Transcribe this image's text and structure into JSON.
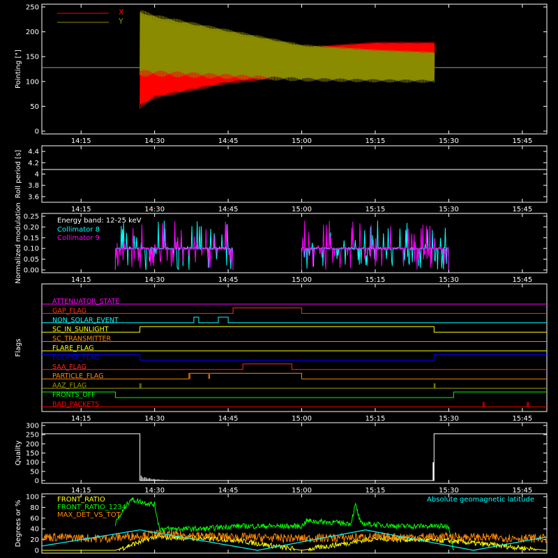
{
  "chart_data": [
    {
      "type": "line",
      "id": "pointing",
      "ylabel": "Pointing [\"]",
      "ylim": [
        0,
        250
      ],
      "yticks": [
        0,
        50,
        100,
        150,
        200,
        250
      ],
      "xlim": [
        "14:07",
        "15:50"
      ],
      "xticks": [
        "14:15",
        "14:30",
        "14:45",
        "15:00",
        "15:15",
        "15:30",
        "15:45"
      ],
      "grid": false,
      "legend_position": "top-left",
      "reference_line": 128,
      "series": [
        {
          "name": "X",
          "color": "#ff0000",
          "x": [
            "14:27",
            "14:30",
            "14:45",
            "15:00",
            "15:15",
            "15:27"
          ],
          "low": [
            45,
            65,
            95,
            110,
            115,
            115
          ],
          "high": [
            130,
            130,
            150,
            170,
            180,
            180
          ]
        },
        {
          "name": "Y",
          "color": "#8b8b00",
          "x": [
            "14:27",
            "14:30",
            "14:45",
            "15:00",
            "15:15",
            "15:27"
          ],
          "low": [
            110,
            110,
            105,
            100,
            98,
            97
          ],
          "high": [
            245,
            235,
            205,
            175,
            165,
            160
          ]
        }
      ]
    },
    {
      "type": "line",
      "id": "roll",
      "ylabel": "Roll period [s]",
      "ylim": [
        3.5,
        4.5
      ],
      "yticks": [
        3.6,
        3.8,
        4.0,
        4.2,
        4.4
      ],
      "xticks": [
        "14:15",
        "14:30",
        "14:45",
        "15:00",
        "15:15",
        "15:30",
        "15:45"
      ],
      "series": [
        {
          "name": "",
          "color": "#ffffff",
          "x": [
            "14:07",
            "15:50"
          ],
          "values": [
            4.08,
            4.08
          ]
        }
      ]
    },
    {
      "type": "line",
      "id": "modulation",
      "ylabel": "Normalized modulation",
      "ylim": [
        0,
        0.25
      ],
      "yticks": [
        "0.00",
        "0.05",
        "0.10",
        "0.15",
        "0.20",
        "0.25"
      ],
      "xticks": [
        "14:15",
        "14:30",
        "14:45",
        "15:00",
        "15:15",
        "15:30",
        "15:45"
      ],
      "annotation": "Energy band: 12-25 keV",
      "legend_position": "top-left",
      "series": [
        {
          "name": "Collimator 8",
          "color": "#00ffff",
          "segments": [
            [
              "14:22",
              "14:46"
            ],
            [
              "15:00",
              "15:30"
            ]
          ],
          "baseline": 0.1
        },
        {
          "name": "Collimator 9",
          "color": "#ff00ff",
          "segments": [
            [
              "14:22",
              "14:46"
            ],
            [
              "15:00",
              "15:30"
            ]
          ],
          "baseline": 0.1
        }
      ]
    },
    {
      "type": "line",
      "id": "flags",
      "ylabel": "Flags",
      "xticks": [
        "14:15",
        "14:30",
        "14:45",
        "15:00",
        "15:15",
        "15:30",
        "15:45"
      ],
      "series": [
        {
          "name": "ATTENUATOR_STATE",
          "color": "#ff00ff",
          "high": []
        },
        {
          "name": "GAP_FLAG",
          "color": "#ff3300",
          "high": [
            [
              "14:46",
              "15:00"
            ]
          ]
        },
        {
          "name": "NON_SOLAR_EVENT",
          "color": "#00ffff",
          "high": [
            [
              "14:38",
              "14:39"
            ],
            [
              "14:43",
              "14:45"
            ]
          ]
        },
        {
          "name": "SC_IN_SUNLIGHT",
          "color": "#ffff00",
          "high": [
            [
              "14:27",
              "15:27"
            ]
          ]
        },
        {
          "name": "SC_TRANSMITTER",
          "color": "#ff8800",
          "high": []
        },
        {
          "name": "FLARE_FLAG",
          "color": "#ffff00",
          "high": []
        },
        {
          "name": "ECLIPSE_FLAG",
          "color": "#0000ff",
          "high": [
            [
              "14:07",
              "14:27"
            ],
            [
              "15:27",
              "15:50"
            ]
          ]
        },
        {
          "name": "SAA_FLAG",
          "color": "#ff2222",
          "high": [
            [
              "14:48",
              "14:58"
            ]
          ]
        },
        {
          "name": "PARTICLE_FLAG",
          "color": "#ff8800",
          "high": [
            [
              "14:37",
              "15:00"
            ]
          ],
          "spikes": [
            "14:37",
            "14:41"
          ]
        },
        {
          "name": "AAZ_FLAG",
          "color": "#999900",
          "high": [],
          "spikes": [
            "14:27",
            "15:27"
          ]
        },
        {
          "name": "FRONTS_OFF",
          "color": "#00ff00",
          "high": [
            [
              "14:07",
              "14:22"
            ],
            [
              "15:31",
              "15:50"
            ]
          ]
        },
        {
          "name": "BAD_PACKETS",
          "color": "#ff0000",
          "high": [],
          "spikes": [
            "15:37",
            "15:46"
          ]
        }
      ]
    },
    {
      "type": "line",
      "id": "quality",
      "ylabel": "Quality",
      "ylim": [
        0,
        300
      ],
      "yticks": [
        0,
        50,
        100,
        150,
        200,
        250,
        300
      ],
      "xticks": [
        "14:15",
        "14:30",
        "14:45",
        "15:00",
        "15:15",
        "15:30",
        "15:45"
      ],
      "series": [
        {
          "name": "",
          "color": "#ffffff",
          "x": [
            "14:07",
            "14:27",
            "14:27",
            "15:27",
            "15:27",
            "15:50"
          ],
          "values": [
            255,
            255,
            0,
            0,
            255,
            255
          ]
        }
      ]
    },
    {
      "type": "line",
      "id": "ratio",
      "ylabel": "Degrees or %",
      "ylim": [
        0,
        100
      ],
      "yticks": [
        0,
        20,
        40,
        60,
        80,
        100
      ],
      "xticks": [
        "14:15",
        "14:30",
        "14:45",
        "15:00",
        "15:15",
        "15:30",
        "15:45"
      ],
      "annotation": "Absolute geomagnetic latitude",
      "annotation_color": "#00ffff",
      "legend_position": "top-left",
      "series": [
        {
          "name": "FRONT_RATIO",
          "color": "#ffff00",
          "x": [
            "14:07",
            "14:22",
            "14:30",
            "14:46",
            "15:00",
            "15:15",
            "15:30",
            "15:50"
          ],
          "values": [
            0,
            0,
            25,
            20,
            0,
            22,
            18,
            0
          ]
        },
        {
          "name": "FRONT_RATIO_1234",
          "color": "#00ff00",
          "x": [
            "14:22",
            "14:25",
            "14:30",
            "14:31",
            "14:40",
            "14:46",
            "15:00",
            "15:01",
            "15:10",
            "15:11",
            "15:12",
            "15:20",
            "15:30",
            "15:31"
          ],
          "values": [
            50,
            95,
            85,
            40,
            40,
            45,
            45,
            55,
            50,
            85,
            50,
            45,
            45,
            0
          ]
        },
        {
          "name": "MAX_DET_VS_TOT",
          "color": "#ff8800",
          "x": [
            "14:07",
            "14:20",
            "14:30",
            "14:45",
            "15:00",
            "15:15",
            "15:30",
            "15:50"
          ],
          "values": [
            25,
            22,
            30,
            25,
            22,
            25,
            25,
            22
          ]
        },
        {
          "name": "Absolute geomagnetic latitude",
          "color": "#00ffff",
          "x": [
            "14:07",
            "14:27",
            "14:51",
            "15:13",
            "15:35",
            "15:50"
          ],
          "values": [
            8,
            38,
            0,
            38,
            0,
            25
          ]
        }
      ]
    }
  ]
}
